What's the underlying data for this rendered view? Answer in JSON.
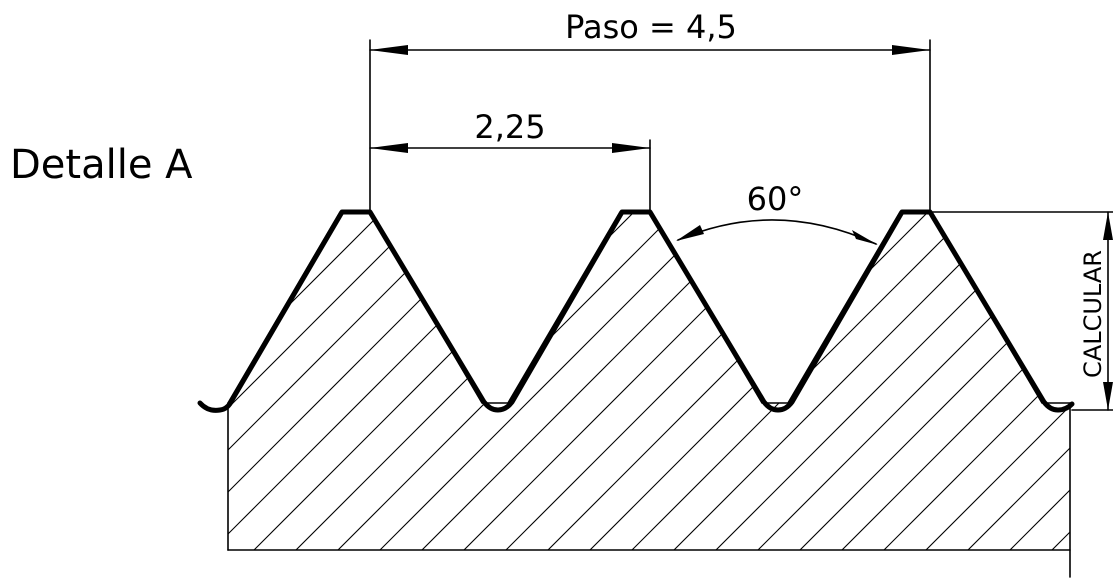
{
  "drawing": {
    "detail_label": "Detalle A",
    "dimensions": {
      "pitch": "Paso = 4,5",
      "half_pitch": "2,25",
      "angle": "60°",
      "depth": "CALCULAR"
    }
  }
}
